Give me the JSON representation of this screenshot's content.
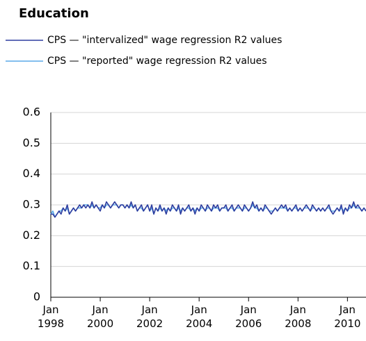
{
  "chart_data": {
    "type": "line",
    "title": "Education",
    "x": [
      "1998-01",
      "1998-02",
      "1998-03",
      "1998-04",
      "1998-05",
      "1998-06",
      "1998-07",
      "1998-08",
      "1998-09",
      "1998-10",
      "1998-11",
      "1998-12",
      "1999-01",
      "1999-02",
      "1999-03",
      "1999-04",
      "1999-05",
      "1999-06",
      "1999-07",
      "1999-08",
      "1999-09",
      "1999-10",
      "1999-11",
      "1999-12",
      "2000-01",
      "2000-02",
      "2000-03",
      "2000-04",
      "2000-05",
      "2000-06",
      "2000-07",
      "2000-08",
      "2000-09",
      "2000-10",
      "2000-11",
      "2000-12",
      "2001-01",
      "2001-02",
      "2001-03",
      "2001-04",
      "2001-05",
      "2001-06",
      "2001-07",
      "2001-08",
      "2001-09",
      "2001-10",
      "2001-11",
      "2001-12",
      "2002-01",
      "2002-02",
      "2002-03",
      "2002-04",
      "2002-05",
      "2002-06",
      "2002-07",
      "2002-08",
      "2002-09",
      "2002-10",
      "2002-11",
      "2002-12",
      "2003-01",
      "2003-02",
      "2003-03",
      "2003-04",
      "2003-05",
      "2003-06",
      "2003-07",
      "2003-08",
      "2003-09",
      "2003-10",
      "2003-11",
      "2003-12",
      "2004-01",
      "2004-02",
      "2004-03",
      "2004-04",
      "2004-05",
      "2004-06",
      "2004-07",
      "2004-08",
      "2004-09",
      "2004-10",
      "2004-11",
      "2004-12",
      "2005-01",
      "2005-02",
      "2005-03",
      "2005-04",
      "2005-05",
      "2005-06",
      "2005-07",
      "2005-08",
      "2005-09",
      "2005-10",
      "2005-11",
      "2005-12",
      "2006-01",
      "2006-02",
      "2006-03",
      "2006-04",
      "2006-05",
      "2006-06",
      "2006-07",
      "2006-08",
      "2006-09",
      "2006-10",
      "2006-11",
      "2006-12",
      "2007-01",
      "2007-02",
      "2007-03",
      "2007-04",
      "2007-05",
      "2007-06",
      "2007-07",
      "2007-08",
      "2007-09",
      "2007-10",
      "2007-11",
      "2007-12",
      "2008-01",
      "2008-02",
      "2008-03",
      "2008-04",
      "2008-05",
      "2008-06",
      "2008-07",
      "2008-08",
      "2008-09",
      "2008-10",
      "2008-11",
      "2008-12",
      "2009-01",
      "2009-02",
      "2009-03",
      "2009-04",
      "2009-05",
      "2009-06",
      "2009-07",
      "2009-08",
      "2009-09",
      "2009-10",
      "2009-11",
      "2009-12",
      "2010-01",
      "2010-02",
      "2010-03",
      "2010-04",
      "2010-05",
      "2010-06",
      "2010-07",
      "2010-08",
      "2010-09",
      "2010-10"
    ],
    "series": [
      {
        "name": "CPS — \"intervalized\" wage regression R2 values",
        "color": "#2e3d9f",
        "values": [
          0.27,
          0.27,
          0.26,
          0.27,
          0.28,
          0.27,
          0.29,
          0.28,
          0.3,
          0.27,
          0.28,
          0.29,
          0.28,
          0.29,
          0.3,
          0.29,
          0.3,
          0.29,
          0.3,
          0.29,
          0.31,
          0.29,
          0.3,
          0.29,
          0.28,
          0.3,
          0.29,
          0.31,
          0.3,
          0.29,
          0.3,
          0.31,
          0.3,
          0.29,
          0.3,
          0.3,
          0.29,
          0.3,
          0.29,
          0.31,
          0.29,
          0.3,
          0.28,
          0.29,
          0.3,
          0.28,
          0.29,
          0.3,
          0.28,
          0.3,
          0.27,
          0.29,
          0.28,
          0.3,
          0.28,
          0.29,
          0.27,
          0.29,
          0.28,
          0.3,
          0.29,
          0.28,
          0.3,
          0.27,
          0.29,
          0.28,
          0.29,
          0.3,
          0.28,
          0.29,
          0.27,
          0.29,
          0.28,
          0.3,
          0.29,
          0.28,
          0.3,
          0.29,
          0.28,
          0.3,
          0.29,
          0.3,
          0.28,
          0.29,
          0.29,
          0.3,
          0.28,
          0.29,
          0.3,
          0.28,
          0.29,
          0.3,
          0.29,
          0.28,
          0.3,
          0.29,
          0.28,
          0.29,
          0.31,
          0.29,
          0.3,
          0.28,
          0.29,
          0.28,
          0.3,
          0.29,
          0.28,
          0.27,
          0.28,
          0.29,
          0.28,
          0.29,
          0.3,
          0.29,
          0.3,
          0.28,
          0.29,
          0.28,
          0.29,
          0.3,
          0.28,
          0.29,
          0.28,
          0.29,
          0.3,
          0.29,
          0.28,
          0.3,
          0.29,
          0.28,
          0.29,
          0.28,
          0.29,
          0.28,
          0.29,
          0.3,
          0.28,
          0.27,
          0.28,
          0.29,
          0.28,
          0.3,
          0.27,
          0.29,
          0.28,
          0.3,
          0.29,
          0.31,
          0.29,
          0.3,
          0.29,
          0.28,
          0.29,
          0.28
        ]
      },
      {
        "name": "CPS — \"reported\" wage regression R2 values",
        "color": "#5aa9e8",
        "values": [
          0.27,
          0.28,
          0.26,
          0.27,
          0.28,
          0.28,
          0.29,
          0.28,
          0.29,
          0.27,
          0.28,
          0.29,
          0.28,
          0.29,
          0.29,
          0.29,
          0.3,
          0.3,
          0.3,
          0.29,
          0.3,
          0.29,
          0.3,
          0.29,
          0.29,
          0.3,
          0.29,
          0.3,
          0.3,
          0.29,
          0.3,
          0.3,
          0.3,
          0.29,
          0.3,
          0.3,
          0.29,
          0.3,
          0.29,
          0.3,
          0.29,
          0.3,
          0.28,
          0.29,
          0.29,
          0.28,
          0.29,
          0.3,
          0.28,
          0.29,
          0.27,
          0.29,
          0.28,
          0.29,
          0.28,
          0.29,
          0.28,
          0.29,
          0.28,
          0.29,
          0.29,
          0.28,
          0.29,
          0.28,
          0.29,
          0.28,
          0.29,
          0.29,
          0.28,
          0.29,
          0.28,
          0.29,
          0.28,
          0.29,
          0.29,
          0.28,
          0.29,
          0.29,
          0.28,
          0.29,
          0.29,
          0.29,
          0.28,
          0.29,
          0.29,
          0.29,
          0.28,
          0.29,
          0.29,
          0.28,
          0.29,
          0.29,
          0.29,
          0.28,
          0.29,
          0.29,
          0.28,
          0.29,
          0.3,
          0.29,
          0.29,
          0.28,
          0.29,
          0.28,
          0.29,
          0.29,
          0.28,
          0.28,
          0.28,
          0.29,
          0.28,
          0.29,
          0.29,
          0.29,
          0.29,
          0.28,
          0.29,
          0.28,
          0.29,
          0.29,
          0.28,
          0.29,
          0.28,
          0.29,
          0.29,
          0.29,
          0.28,
          0.29,
          0.29,
          0.28,
          0.29,
          0.28,
          0.29,
          0.28,
          0.29,
          0.29,
          0.28,
          0.28,
          0.28,
          0.29,
          0.28,
          0.29,
          0.28,
          0.29,
          0.28,
          0.29,
          0.29,
          0.3,
          0.29,
          0.29,
          0.29,
          0.28,
          0.29,
          0.28
        ]
      }
    ],
    "xlim": [
      "1998-01",
      "2010-10"
    ],
    "xticks": [
      {
        "value": "1998-01",
        "label": "Jan 1998"
      },
      {
        "value": "2000-01",
        "label": "Jan 2000"
      },
      {
        "value": "2002-01",
        "label": "Jan 2002"
      },
      {
        "value": "2004-01",
        "label": "Jan 2004"
      },
      {
        "value": "2006-01",
        "label": "Jan 2006"
      },
      {
        "value": "2008-01",
        "label": "Jan 2008"
      },
      {
        "value": "2010-01",
        "label": "Jan 2010"
      }
    ],
    "ylim": [
      0,
      0.6
    ],
    "yticks": [
      0,
      0.1,
      0.2,
      0.3,
      0.4,
      0.5,
      0.6
    ],
    "grid": true
  }
}
